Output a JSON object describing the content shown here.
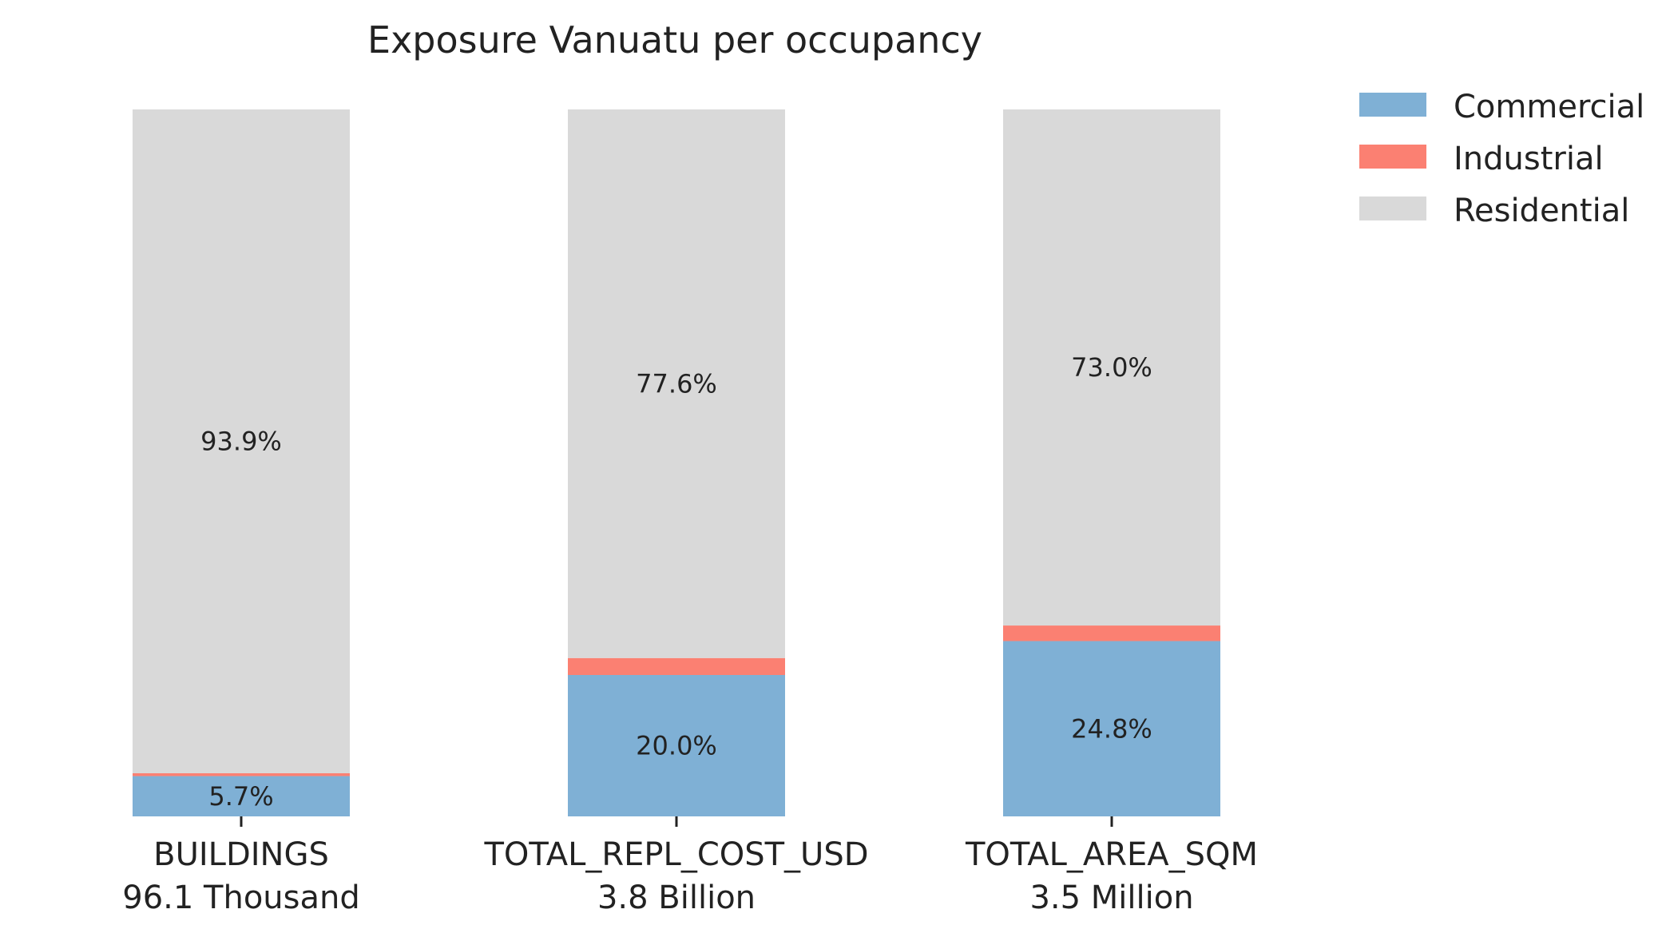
{
  "chart_data": {
    "type": "bar",
    "stacked": true,
    "normalized_percent": true,
    "title": "Exposure Vanuatu per occupancy",
    "xlabel": "",
    "ylabel": "",
    "ylim": [
      0,
      100
    ],
    "grid": false,
    "legend_position": "top-right",
    "categories": [
      "BUILDINGS",
      "TOTAL_REPL_COST_USD",
      "TOTAL_AREA_SQM"
    ],
    "category_totals": [
      "96.1 Thousand",
      "3.8 Billion",
      "3.5 Million"
    ],
    "series": [
      {
        "name": "Commercial",
        "color": "#7fb0d5",
        "values": [
          5.7,
          20.0,
          24.8
        ],
        "value_labels": [
          "5.7%",
          "20.0%",
          "24.8%"
        ]
      },
      {
        "name": "Industrial",
        "color": "#fb8072",
        "values": [
          0.4,
          2.4,
          2.2
        ],
        "value_labels": [
          "",
          "",
          ""
        ]
      },
      {
        "name": "Residential",
        "color": "#d9d9d9",
        "values": [
          93.9,
          77.6,
          73.0
        ],
        "value_labels": [
          "93.9%",
          "77.6%",
          "73.0%"
        ]
      }
    ]
  }
}
